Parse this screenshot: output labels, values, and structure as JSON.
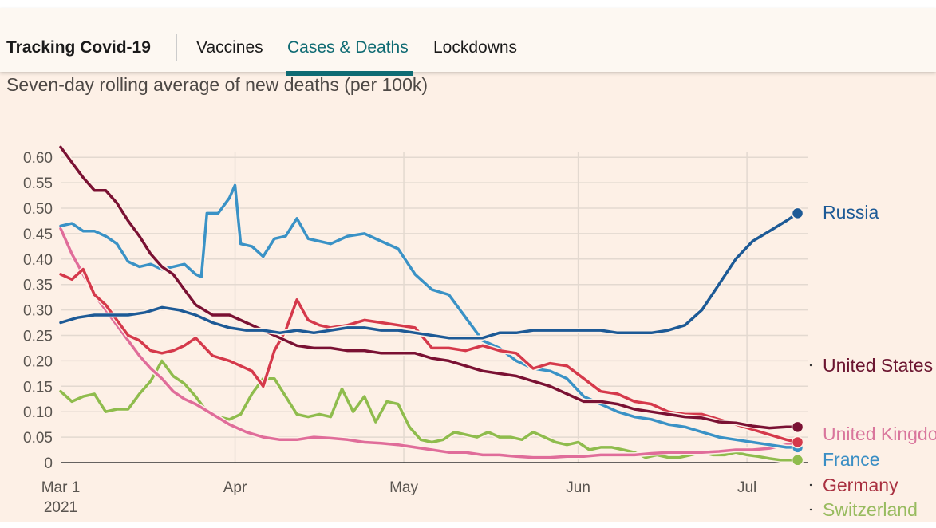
{
  "header": {
    "brand": "Tracking Covid-19",
    "tabs": [
      {
        "label": "Vaccines",
        "active": false
      },
      {
        "label": "Cases & Deaths",
        "active": true
      },
      {
        "label": "Lockdowns",
        "active": false
      }
    ],
    "accent_color": "#0f6b73"
  },
  "chart_data": {
    "type": "line",
    "title": "Seven-day rolling average of new deaths (per 100k)",
    "xlabel": "",
    "ylabel": "",
    "ylim": [
      0,
      0.6
    ],
    "yticks": [
      "0",
      "0.05",
      "0.10",
      "0.15",
      "0.20",
      "0.25",
      "0.30",
      "0.35",
      "0.40",
      "0.45",
      "0.50",
      "0.55",
      "0.60"
    ],
    "ytick_values": [
      0,
      0.05,
      0.1,
      0.15,
      0.2,
      0.25,
      0.3,
      0.35,
      0.4,
      0.45,
      0.5,
      0.55,
      0.6
    ],
    "x_unit": "days since Mar 1 2021",
    "xlim": [
      0,
      131
    ],
    "xticks": [
      {
        "day": 0,
        "label": "Mar 1",
        "sublabel": "2021"
      },
      {
        "day": 31,
        "label": "Apr"
      },
      {
        "day": 61,
        "label": "May"
      },
      {
        "day": 92,
        "label": "Jun"
      },
      {
        "day": 122,
        "label": "Jul"
      }
    ],
    "grid": true,
    "legend": "right-end labels",
    "series": [
      {
        "name": "Russia",
        "color": "#1d5a96",
        "label_color": "#1d5a96",
        "end_marker": true,
        "x": [
          0,
          3,
          6,
          9,
          12,
          15,
          18,
          21,
          24,
          27,
          30,
          33,
          36,
          39,
          42,
          45,
          48,
          51,
          54,
          57,
          60,
          63,
          66,
          69,
          72,
          75,
          78,
          81,
          84,
          87,
          90,
          93,
          96,
          99,
          102,
          105,
          108,
          111,
          114,
          117,
          120,
          123,
          126,
          129,
          131
        ],
        "y": [
          0.275,
          0.285,
          0.29,
          0.29,
          0.29,
          0.295,
          0.305,
          0.3,
          0.29,
          0.275,
          0.265,
          0.26,
          0.26,
          0.255,
          0.26,
          0.255,
          0.26,
          0.265,
          0.265,
          0.26,
          0.26,
          0.255,
          0.25,
          0.245,
          0.245,
          0.245,
          0.255,
          0.255,
          0.26,
          0.26,
          0.26,
          0.26,
          0.26,
          0.255,
          0.255,
          0.255,
          0.26,
          0.27,
          0.3,
          0.35,
          0.4,
          0.435,
          0.455,
          0.475,
          0.49
        ]
      },
      {
        "name": "United States",
        "color": "#7a1133",
        "label_color": "#6b1530",
        "end_marker": true,
        "x": [
          0,
          2,
          4,
          6,
          8,
          10,
          12,
          14,
          16,
          18,
          20,
          22,
          24,
          27,
          30,
          33,
          36,
          39,
          42,
          45,
          48,
          51,
          54,
          57,
          60,
          63,
          66,
          69,
          72,
          75,
          78,
          81,
          84,
          87,
          90,
          93,
          96,
          99,
          102,
          105,
          108,
          111,
          114,
          117,
          120,
          123,
          126,
          129,
          131
        ],
        "y": [
          0.62,
          0.59,
          0.56,
          0.535,
          0.535,
          0.51,
          0.475,
          0.445,
          0.41,
          0.385,
          0.37,
          0.34,
          0.31,
          0.29,
          0.29,
          0.275,
          0.26,
          0.245,
          0.23,
          0.225,
          0.225,
          0.22,
          0.22,
          0.215,
          0.215,
          0.215,
          0.205,
          0.2,
          0.19,
          0.18,
          0.175,
          0.17,
          0.16,
          0.15,
          0.135,
          0.12,
          0.12,
          0.115,
          0.105,
          0.1,
          0.095,
          0.09,
          0.088,
          0.08,
          0.078,
          0.072,
          0.068,
          0.07,
          0.07
        ]
      },
      {
        "name": "United Kingdom",
        "color": "#e06d9a",
        "label_color": "#d9759c",
        "end_marker": true,
        "x": [
          0,
          2,
          4,
          6,
          8,
          10,
          12,
          14,
          16,
          18,
          20,
          22,
          24,
          27,
          30,
          33,
          36,
          39,
          42,
          45,
          48,
          51,
          54,
          57,
          60,
          63,
          66,
          69,
          72,
          75,
          78,
          81,
          84,
          87,
          90,
          93,
          96,
          99,
          102,
          105,
          108,
          111,
          114,
          117,
          120,
          123,
          126,
          129,
          131
        ],
        "y": [
          0.46,
          0.41,
          0.37,
          0.33,
          0.3,
          0.27,
          0.24,
          0.21,
          0.185,
          0.165,
          0.14,
          0.125,
          0.115,
          0.095,
          0.075,
          0.06,
          0.05,
          0.045,
          0.045,
          0.05,
          0.048,
          0.045,
          0.04,
          0.038,
          0.035,
          0.03,
          0.025,
          0.02,
          0.02,
          0.015,
          0.015,
          0.012,
          0.01,
          0.01,
          0.012,
          0.012,
          0.015,
          0.015,
          0.015,
          0.018,
          0.02,
          0.02,
          0.02,
          0.022,
          0.025,
          0.025,
          0.028,
          0.035,
          0.04
        ]
      },
      {
        "name": "France",
        "color": "#3a92c6",
        "label_color": "#3a8ec4",
        "end_marker": true,
        "x": [
          0,
          2,
          4,
          6,
          8,
          10,
          12,
          14,
          16,
          18,
          20,
          22,
          24,
          25,
          26,
          28,
          30,
          31,
          32,
          34,
          36,
          38,
          40,
          42,
          44,
          46,
          48,
          51,
          54,
          57,
          60,
          63,
          66,
          69,
          72,
          75,
          78,
          81,
          84,
          87,
          90,
          93,
          96,
          99,
          102,
          105,
          108,
          111,
          114,
          117,
          120,
          123,
          126,
          129,
          131
        ],
        "y": [
          0.465,
          0.47,
          0.455,
          0.455,
          0.445,
          0.43,
          0.395,
          0.385,
          0.39,
          0.38,
          0.385,
          0.39,
          0.37,
          0.365,
          0.49,
          0.49,
          0.52,
          0.545,
          0.43,
          0.425,
          0.405,
          0.44,
          0.445,
          0.48,
          0.44,
          0.435,
          0.43,
          0.445,
          0.45,
          0.435,
          0.42,
          0.37,
          0.34,
          0.33,
          0.285,
          0.24,
          0.225,
          0.2,
          0.185,
          0.18,
          0.165,
          0.13,
          0.115,
          0.1,
          0.09,
          0.085,
          0.075,
          0.07,
          0.06,
          0.05,
          0.045,
          0.04,
          0.035,
          0.03,
          0.03
        ]
      },
      {
        "name": "Germany",
        "color": "#d5394b",
        "label_color": "#a93040",
        "end_marker": true,
        "x": [
          0,
          2,
          4,
          6,
          8,
          10,
          12,
          14,
          16,
          18,
          20,
          22,
          24,
          27,
          30,
          32,
          34,
          36,
          38,
          40,
          42,
          44,
          46,
          48,
          51,
          54,
          57,
          60,
          63,
          66,
          69,
          72,
          75,
          78,
          81,
          84,
          87,
          90,
          93,
          96,
          99,
          102,
          105,
          108,
          111,
          114,
          117,
          120,
          123,
          126,
          129,
          131
        ],
        "y": [
          0.37,
          0.36,
          0.38,
          0.33,
          0.31,
          0.28,
          0.25,
          0.24,
          0.22,
          0.215,
          0.22,
          0.23,
          0.245,
          0.21,
          0.2,
          0.19,
          0.18,
          0.15,
          0.22,
          0.26,
          0.32,
          0.28,
          0.27,
          0.265,
          0.27,
          0.28,
          0.275,
          0.27,
          0.265,
          0.225,
          0.225,
          0.22,
          0.23,
          0.22,
          0.215,
          0.185,
          0.195,
          0.19,
          0.165,
          0.14,
          0.135,
          0.12,
          0.115,
          0.1,
          0.095,
          0.095,
          0.085,
          0.075,
          0.065,
          0.055,
          0.045,
          0.04
        ]
      },
      {
        "name": "Switzerland",
        "color": "#8fbc4d",
        "label_color": "#98bb5f",
        "end_marker": true,
        "x": [
          0,
          2,
          4,
          6,
          8,
          10,
          12,
          14,
          16,
          18,
          20,
          22,
          24,
          26,
          28,
          30,
          32,
          34,
          36,
          38,
          40,
          42,
          44,
          46,
          48,
          50,
          52,
          54,
          56,
          58,
          60,
          62,
          64,
          66,
          68,
          70,
          72,
          74,
          76,
          78,
          80,
          82,
          84,
          86,
          88,
          90,
          92,
          94,
          96,
          98,
          100,
          102,
          104,
          106,
          108,
          110,
          112,
          114,
          116,
          118,
          120,
          122,
          124,
          126,
          128,
          131
        ],
        "y": [
          0.14,
          0.12,
          0.13,
          0.135,
          0.1,
          0.105,
          0.105,
          0.135,
          0.16,
          0.2,
          0.17,
          0.155,
          0.13,
          0.1,
          0.09,
          0.085,
          0.095,
          0.135,
          0.165,
          0.165,
          0.13,
          0.095,
          0.09,
          0.095,
          0.09,
          0.145,
          0.1,
          0.13,
          0.08,
          0.12,
          0.115,
          0.07,
          0.045,
          0.04,
          0.045,
          0.06,
          0.055,
          0.05,
          0.06,
          0.05,
          0.05,
          0.045,
          0.06,
          0.05,
          0.04,
          0.035,
          0.04,
          0.025,
          0.03,
          0.03,
          0.025,
          0.02,
          0.01,
          0.015,
          0.01,
          0.01,
          0.015,
          0.02,
          0.015,
          0.015,
          0.02,
          0.015,
          0.012,
          0.008,
          0.005,
          0.005
        ]
      }
    ]
  }
}
